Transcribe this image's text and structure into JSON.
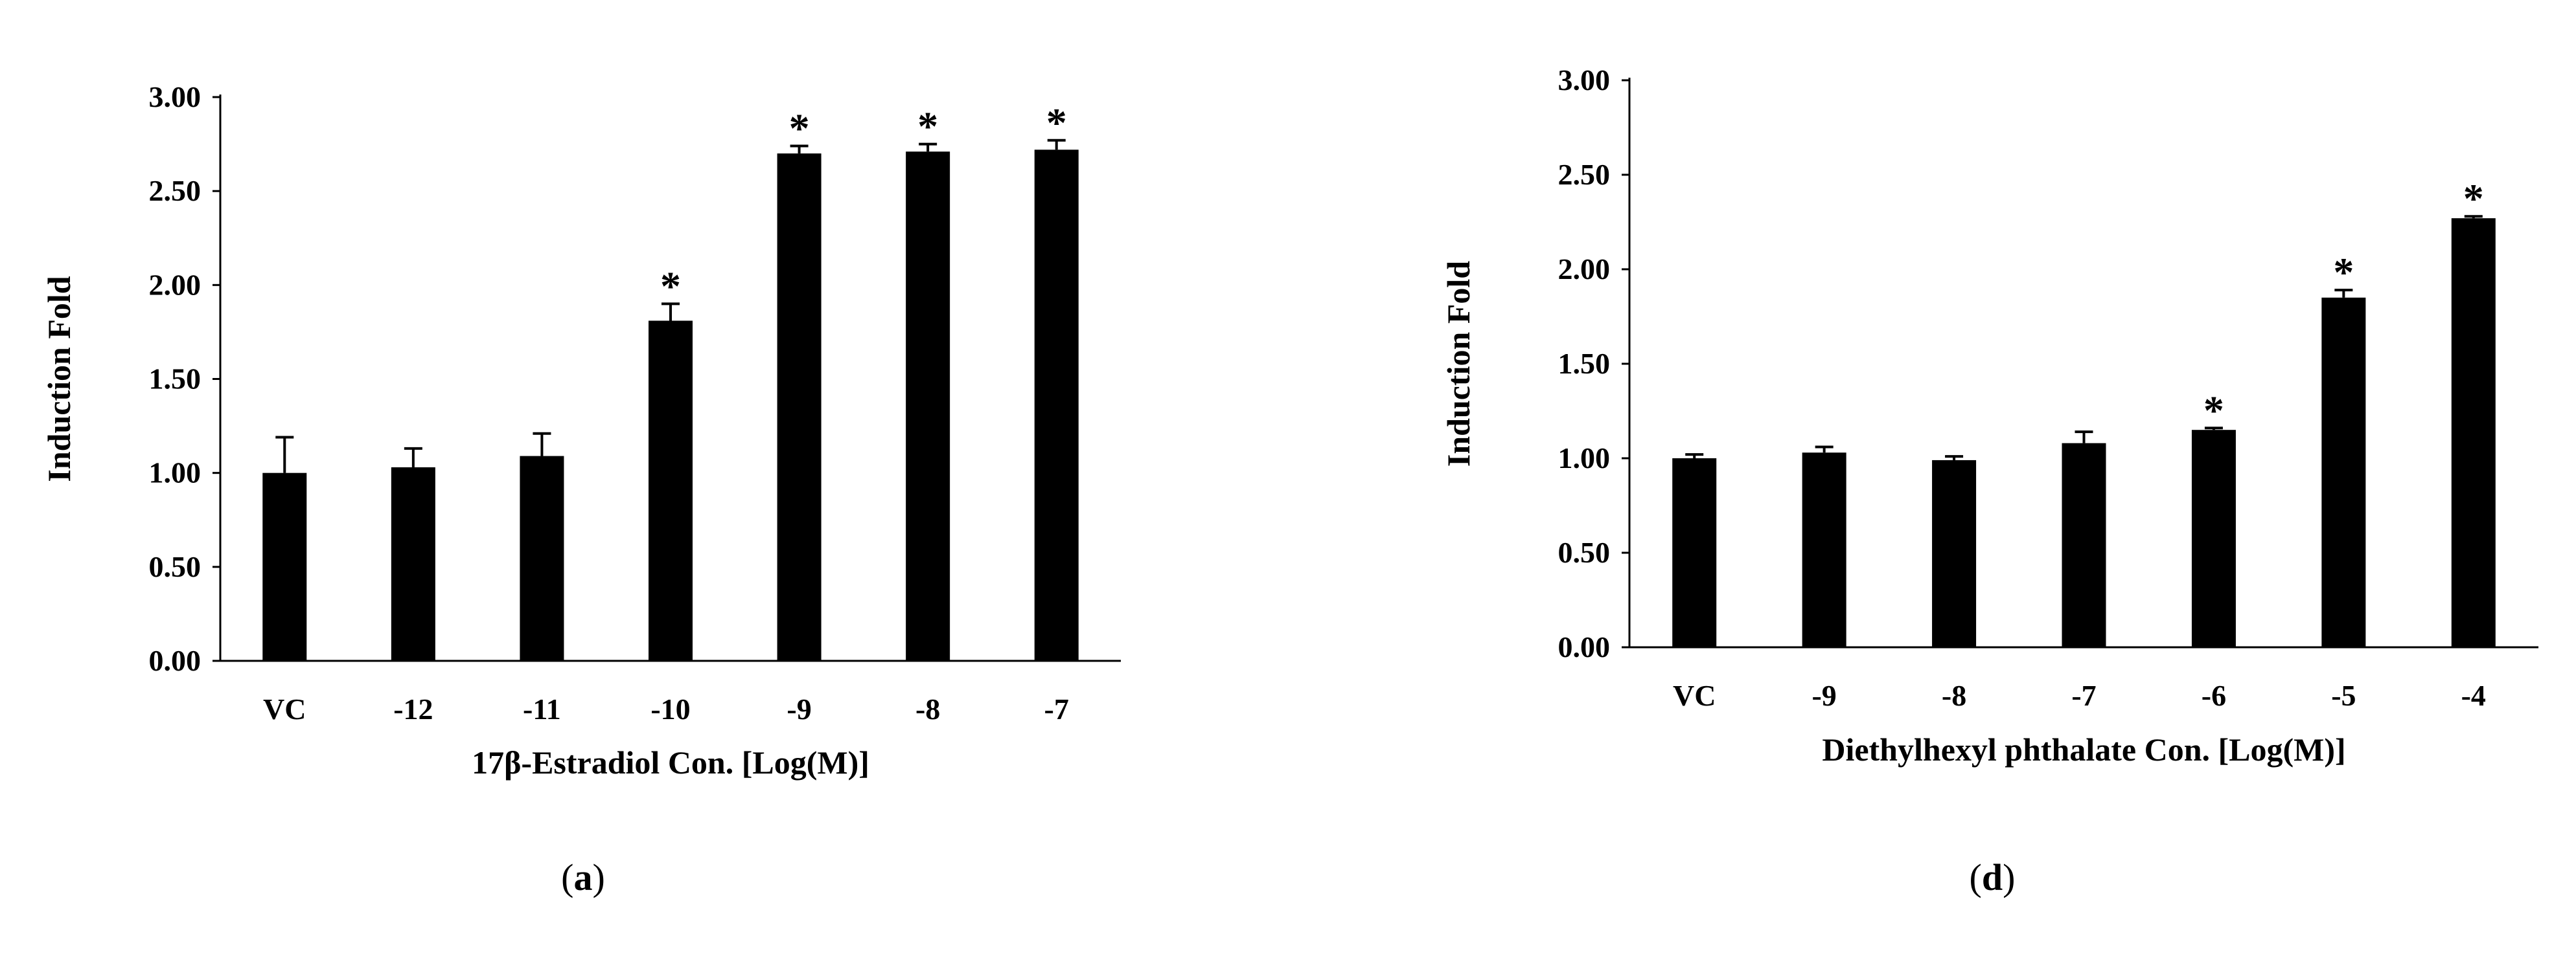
{
  "chart_data": [
    {
      "type": "bar",
      "panel_label": "a",
      "xlabel": "17β-Estradiol Con. [Log(M)]",
      "ylabel": "Induction Fold",
      "ylim": [
        0,
        3
      ],
      "yticks": [
        "0.00",
        "0.50",
        "1.00",
        "1.50",
        "2.00",
        "2.50",
        "3.00"
      ],
      "categories": [
        "VC",
        "-12",
        "-11",
        "-10",
        "-9",
        "-8",
        "-7"
      ],
      "values": [
        1.0,
        1.03,
        1.09,
        1.81,
        2.7,
        2.71,
        2.72
      ],
      "errors": [
        0.19,
        0.1,
        0.12,
        0.09,
        0.04,
        0.04,
        0.05
      ],
      "significant": [
        false,
        false,
        false,
        true,
        true,
        true,
        true
      ],
      "significance_marker": "*",
      "grid": false,
      "bar_color": "#000000"
    },
    {
      "type": "bar",
      "panel_label": "d",
      "xlabel": "Diethylhexyl phthalate Con. [Log(M)]",
      "ylabel": "Induction Fold",
      "ylim": [
        0,
        3
      ],
      "yticks": [
        "0.00",
        "0.50",
        "1.00",
        "1.50",
        "2.00",
        "2.50",
        "3.00"
      ],
      "categories": [
        "VC",
        "-9",
        "-8",
        "-7",
        "-6",
        "-5",
        "-4"
      ],
      "values": [
        1.0,
        1.03,
        0.99,
        1.08,
        1.15,
        1.85,
        2.27
      ],
      "errors": [
        0.02,
        0.03,
        0.02,
        0.06,
        0.01,
        0.04,
        0.01
      ],
      "significant": [
        false,
        false,
        false,
        false,
        true,
        true,
        true
      ],
      "significance_marker": "*",
      "grid": false,
      "bar_color": "#000000"
    }
  ]
}
